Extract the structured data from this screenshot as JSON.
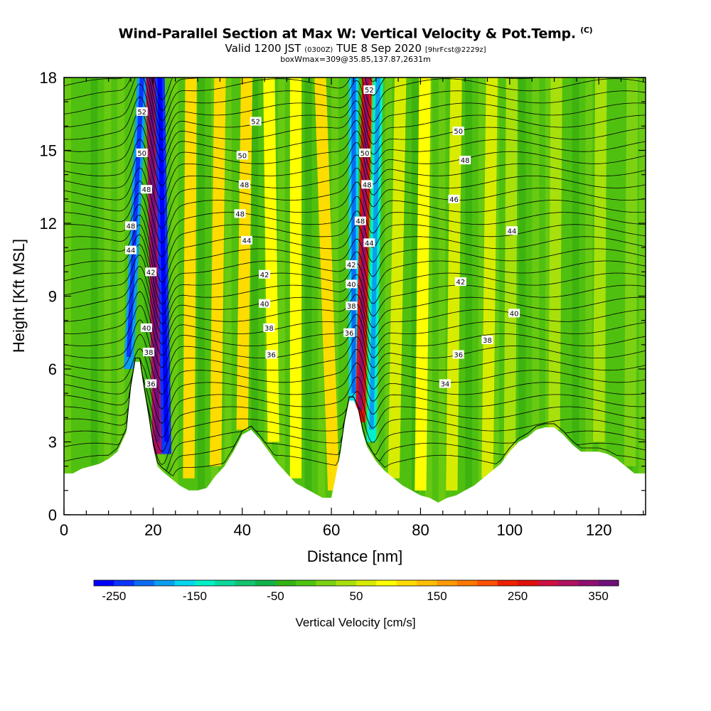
{
  "header": {
    "title": "Wind-Parallel Section at Max W: Vertical Velocity & Pot.Temp.",
    "copyright": "(C)",
    "valid_prefix": "Valid 1200 JST",
    "valid_utc": "(0300Z)",
    "valid_date": "TUE 8 Sep 2020",
    "forecast": "[9hrFcst@2229z]",
    "box_info": "boxWmax=309@35.85,137.87,2631m"
  },
  "colors": {
    "blue": "#0a10f0",
    "cyan": "#00f0f0",
    "green_light": "#7cd212",
    "green_mid": "#50c010",
    "green_dark": "#30a810",
    "yellow": "#f0f000",
    "orange": "#f08a0a",
    "red": "#e01010",
    "terrain": "#ffffff"
  },
  "chart_data": {
    "type": "heatmap",
    "xlabel": "Distance [nm]",
    "ylabel": "Height [Kft MSL]",
    "xlim": [
      0,
      130.5
    ],
    "ylim": [
      0,
      18
    ],
    "x_ticks": [
      0,
      20,
      40,
      60,
      80,
      100,
      120
    ],
    "y_ticks": [
      0,
      3,
      6,
      9,
      12,
      15,
      18
    ],
    "colorbar": {
      "title": "Vertical Velocity [cm/s]",
      "min": -275,
      "max": 375,
      "step": 25,
      "tick_labels": [
        -250,
        -150,
        -50,
        50,
        150,
        250,
        350
      ],
      "colors": [
        "#0000ff",
        "#0c34ff",
        "#0a6cf2",
        "#0a9ef0",
        "#00d6f0",
        "#00f0c8",
        "#0ad89a",
        "#12c46e",
        "#0fb448",
        "#32b414",
        "#4cc410",
        "#7cd212",
        "#a8e00c",
        "#d8ec00",
        "#ffff00",
        "#ffdc00",
        "#ffbe00",
        "#ff9a00",
        "#ff7800",
        "#ff5000",
        "#f02000",
        "#e0100a",
        "#d01040",
        "#b01060",
        "#901070",
        "#70107a"
      ]
    },
    "terrain_profile": {
      "x": [
        0,
        2,
        4,
        6,
        8,
        10,
        12,
        14,
        15,
        16,
        17,
        18,
        19,
        20,
        21,
        22,
        24,
        26,
        28,
        30,
        32,
        34,
        36,
        38,
        40,
        42,
        44,
        46,
        48,
        50,
        52,
        54,
        56,
        58,
        60,
        62,
        63,
        64,
        65,
        66,
        67,
        68,
        70,
        72,
        74,
        76,
        78,
        80,
        82,
        84,
        86,
        88,
        90,
        92,
        94,
        96,
        98,
        100,
        102,
        104,
        106,
        108,
        110,
        112,
        114,
        116,
        118,
        120,
        122,
        124,
        126,
        128,
        130.5
      ],
      "height": [
        1.7,
        1.7,
        1.9,
        2.0,
        2.1,
        2.3,
        2.6,
        3.4,
        5.2,
        6.3,
        6.3,
        5.1,
        4.0,
        2.8,
        2.0,
        1.8,
        1.5,
        1.2,
        1.0,
        1.0,
        1.1,
        1.6,
        2.0,
        2.6,
        3.3,
        3.5,
        3.1,
        2.6,
        2.1,
        1.7,
        1.3,
        1.1,
        0.9,
        0.7,
        0.7,
        2.5,
        3.8,
        4.7,
        4.7,
        4.3,
        3.4,
        2.8,
        2.2,
        1.8,
        1.5,
        1.2,
        1.0,
        0.8,
        0.7,
        0.5,
        0.7,
        0.8,
        1.0,
        1.2,
        1.5,
        1.8,
        2.1,
        2.6,
        3.0,
        3.2,
        3.5,
        3.6,
        3.6,
        3.3,
        2.9,
        2.6,
        2.6,
        2.6,
        2.5,
        2.3,
        2.0,
        1.7,
        1.7
      ]
    },
    "wave_bands": [
      {
        "x_bottom": 14.5,
        "x_top": 17.5,
        "y_bottom": 6.0,
        "y_top": 18,
        "w": -200
      },
      {
        "x_bottom": 21.0,
        "x_top": 19.5,
        "y_bottom": 2.5,
        "y_top": 18,
        "w": 300
      },
      {
        "x_bottom": 23.0,
        "x_top": 21.5,
        "y_bottom": 2.5,
        "y_top": 18,
        "w": -250
      },
      {
        "x_bottom": 28.0,
        "x_top": 28.5,
        "y_bottom": 1.5,
        "y_top": 18,
        "w": 100
      },
      {
        "x_bottom": 34.0,
        "x_top": 35.0,
        "y_bottom": 2.0,
        "y_top": 18,
        "w": 100
      },
      {
        "x_bottom": 40.0,
        "x_top": 41.0,
        "y_bottom": 3.5,
        "y_top": 18,
        "w": 100
      },
      {
        "x_bottom": 47.0,
        "x_top": 46.0,
        "y_bottom": 3.0,
        "y_top": 18,
        "w": 75
      },
      {
        "x_bottom": 52.0,
        "x_top": 52.0,
        "y_bottom": 1.5,
        "y_top": 18,
        "w": 75
      },
      {
        "x_bottom": 60.5,
        "x_top": 57.5,
        "y_bottom": 1.0,
        "y_top": 18,
        "w": 100
      },
      {
        "x_bottom": 65.0,
        "x_top": 65.0,
        "y_bottom": 4.5,
        "y_top": 18,
        "w": -175
      },
      {
        "x_bottom": 66.5,
        "x_top": 68.0,
        "y_bottom": 3.8,
        "y_top": 18,
        "w": 250
      },
      {
        "x_bottom": 69.0,
        "x_top": 70.5,
        "y_bottom": 3.0,
        "y_top": 18,
        "w": -150
      },
      {
        "x_bottom": 74.0,
        "x_top": 75.5,
        "y_bottom": 1.5,
        "y_top": 18,
        "w": 50
      },
      {
        "x_bottom": 80.0,
        "x_top": 81.0,
        "y_bottom": 1.0,
        "y_top": 18,
        "w": 75
      },
      {
        "x_bottom": 87.0,
        "x_top": 88.0,
        "y_bottom": 1.0,
        "y_top": 18,
        "w": 50
      },
      {
        "x_bottom": 95.0,
        "x_top": 96.0,
        "y_bottom": 1.5,
        "y_top": 18,
        "w": 50
      },
      {
        "x_bottom": 100.0,
        "x_top": 100.5,
        "y_bottom": 2.0,
        "y_top": 18,
        "w": 25
      },
      {
        "x_bottom": 110.0,
        "x_top": 110.5,
        "y_bottom": 3.5,
        "y_top": 18,
        "w": 25
      },
      {
        "x_bottom": 120.0,
        "x_top": 120.5,
        "y_bottom": 3.0,
        "y_top": 18,
        "w": 25
      },
      {
        "x_bottom": 127.0,
        "x_top": 127.5,
        "y_bottom": 2.0,
        "y_top": 18,
        "w": 0
      }
    ],
    "contour_labels": [
      {
        "text": "52",
        "x": 17.5,
        "y": 16.6
      },
      {
        "text": "50",
        "x": 17.5,
        "y": 14.9
      },
      {
        "text": "48",
        "x": 18.5,
        "y": 13.4
      },
      {
        "text": "48",
        "x": 15.0,
        "y": 11.9
      },
      {
        "text": "44",
        "x": 15.0,
        "y": 10.9
      },
      {
        "text": "42",
        "x": 19.5,
        "y": 10.0
      },
      {
        "text": "40",
        "x": 18.5,
        "y": 7.7
      },
      {
        "text": "38",
        "x": 19.0,
        "y": 6.7
      },
      {
        "text": "36",
        "x": 19.5,
        "y": 5.4
      },
      {
        "text": "52",
        "x": 43.0,
        "y": 16.2
      },
      {
        "text": "50",
        "x": 40.0,
        "y": 14.8
      },
      {
        "text": "48",
        "x": 40.5,
        "y": 13.6
      },
      {
        "text": "48",
        "x": 39.5,
        "y": 12.4
      },
      {
        "text": "44",
        "x": 41.0,
        "y": 11.3
      },
      {
        "text": "42",
        "x": 45.0,
        "y": 9.9
      },
      {
        "text": "40",
        "x": 45.0,
        "y": 8.7
      },
      {
        "text": "38",
        "x": 46.0,
        "y": 7.7
      },
      {
        "text": "36",
        "x": 46.5,
        "y": 6.6
      },
      {
        "text": "52",
        "x": 68.5,
        "y": 17.5
      },
      {
        "text": "50",
        "x": 67.5,
        "y": 14.9
      },
      {
        "text": "48",
        "x": 68.0,
        "y": 13.6
      },
      {
        "text": "48",
        "x": 66.5,
        "y": 12.1
      },
      {
        "text": "44",
        "x": 68.5,
        "y": 11.2
      },
      {
        "text": "42",
        "x": 64.5,
        "y": 10.3
      },
      {
        "text": "40",
        "x": 64.5,
        "y": 9.5
      },
      {
        "text": "38",
        "x": 64.5,
        "y": 8.6
      },
      {
        "text": "36",
        "x": 64.0,
        "y": 7.5
      },
      {
        "text": "50",
        "x": 88.5,
        "y": 15.8
      },
      {
        "text": "48",
        "x": 90.0,
        "y": 14.6
      },
      {
        "text": "46",
        "x": 87.5,
        "y": 13.0
      },
      {
        "text": "44",
        "x": 100.5,
        "y": 11.7
      },
      {
        "text": "42",
        "x": 89.0,
        "y": 9.6
      },
      {
        "text": "40",
        "x": 101.0,
        "y": 8.3
      },
      {
        "text": "38",
        "x": 95.0,
        "y": 7.2
      },
      {
        "text": "36",
        "x": 88.5,
        "y": 6.6
      },
      {
        "text": "34",
        "x": 85.5,
        "y": 5.4
      }
    ]
  }
}
